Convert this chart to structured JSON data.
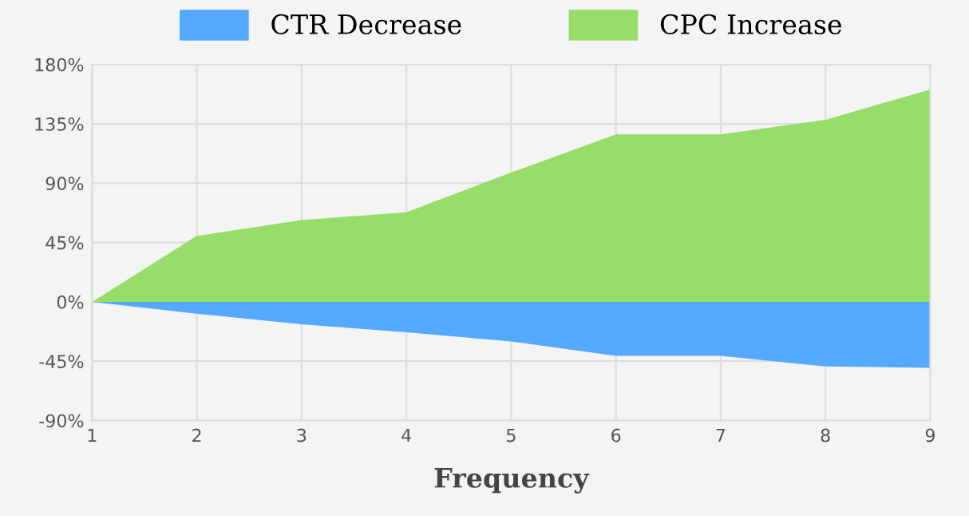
{
  "chart_data": {
    "type": "area",
    "xlabel": "Frequency",
    "x": [
      1,
      2,
      3,
      4,
      5,
      6,
      7,
      8,
      9
    ],
    "series": [
      {
        "name": "CTR Decrease",
        "color": "#55aaff",
        "values": [
          0,
          -9,
          -17,
          -23,
          -30,
          -41,
          -41,
          -49,
          -50
        ]
      },
      {
        "name": "CPC Increase",
        "color": "#96dd6a",
        "values": [
          0,
          50,
          62,
          68,
          98,
          127,
          127,
          138,
          161
        ]
      }
    ],
    "xlim": [
      1,
      9
    ],
    "xticks": [
      1,
      2,
      3,
      4,
      5,
      6,
      7,
      8,
      9
    ],
    "ylim": [
      -90,
      180
    ],
    "yticks": [
      {
        "value": -90,
        "label": "-90%"
      },
      {
        "value": -45,
        "label": "-45%"
      },
      {
        "value": 0,
        "label": "0%"
      },
      {
        "value": 45,
        "label": "45%"
      },
      {
        "value": 90,
        "label": "90%"
      },
      {
        "value": 135,
        "label": "135%"
      },
      {
        "value": 180,
        "label": "180%"
      }
    ],
    "grid": true,
    "legend": "top"
  }
}
